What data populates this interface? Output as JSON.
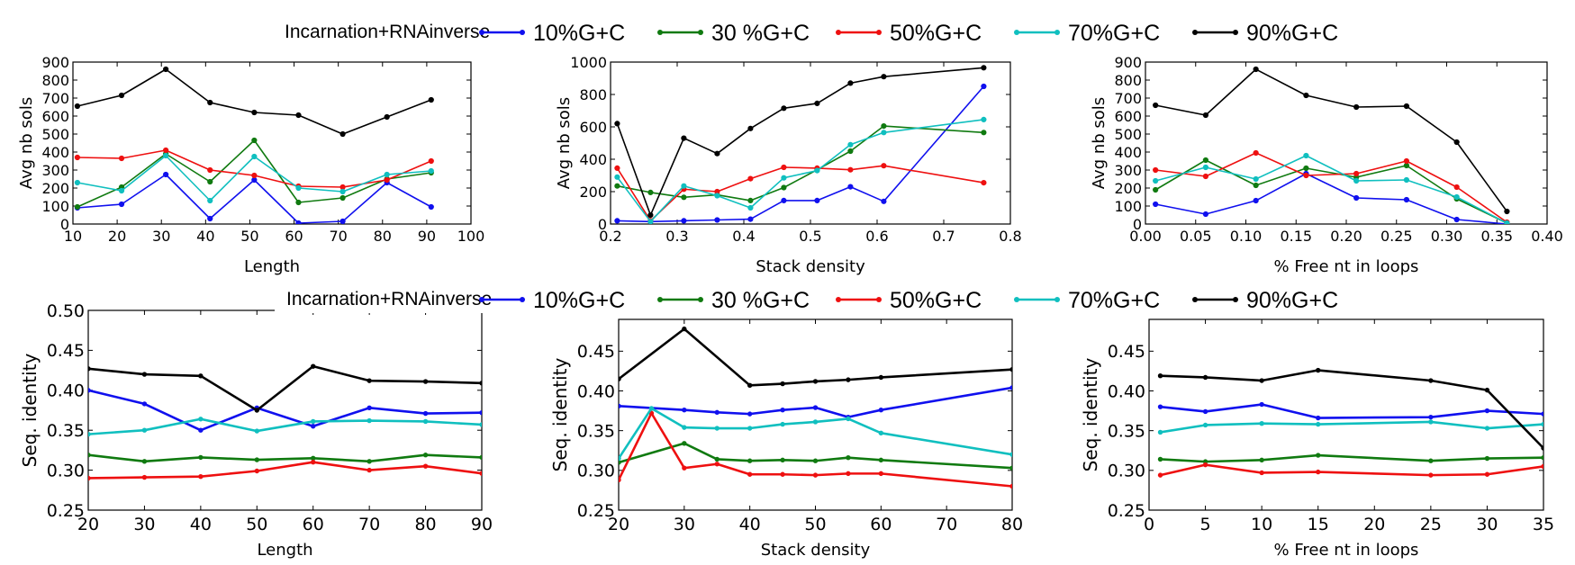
{
  "legend": {
    "title": "Incarnation+RNAinverse",
    "entries": [
      "10%G+C",
      "30 %G+C",
      "50%G+C",
      "70%G+C",
      "90%G+C"
    ]
  },
  "colors": {
    "10%G+C": "#1010ee",
    "30 %G+C": "#107a10",
    "50%G+C": "#ee1010",
    "70%G+C": "#10bfbf",
    "90%G+C": "#000000"
  },
  "chart_data": [
    {
      "type": "line",
      "xlabel": "Length",
      "ylabel": "Avg nb sols",
      "xlim": [
        10,
        100
      ],
      "ylim": [
        0,
        900
      ],
      "xticks": [
        10,
        20,
        30,
        40,
        50,
        60,
        70,
        80,
        90,
        100
      ],
      "yticks": [
        0,
        100,
        200,
        300,
        400,
        500,
        600,
        700,
        800,
        900
      ],
      "markers": true,
      "x": [
        11,
        21,
        31,
        41,
        51,
        61,
        71,
        81,
        91
      ],
      "series": [
        {
          "name": "10%G+C",
          "values": [
            90,
            110,
            275,
            30,
            245,
            5,
            15,
            230,
            95
          ]
        },
        {
          "name": "30 %G+C",
          "values": [
            95,
            205,
            390,
            235,
            465,
            120,
            145,
            250,
            285
          ]
        },
        {
          "name": "50%G+C",
          "values": [
            370,
            365,
            410,
            300,
            270,
            210,
            205,
            245,
            350
          ]
        },
        {
          "name": "70%G+C",
          "values": [
            230,
            185,
            380,
            130,
            375,
            200,
            180,
            275,
            295
          ]
        },
        {
          "name": "90%G+C",
          "values": [
            655,
            715,
            860,
            675,
            620,
            605,
            500,
            595,
            690
          ]
        }
      ]
    },
    {
      "type": "line",
      "xlabel": "Stack density",
      "ylabel": "Avg nb sols",
      "xlim": [
        0.2,
        0.8
      ],
      "ylim": [
        0,
        1000
      ],
      "xticks": [
        "0.2",
        "0.3",
        "0.4",
        "0.5",
        "0.6",
        "0.7",
        "0.8"
      ],
      "yticks": [
        0,
        200,
        400,
        600,
        800,
        1000
      ],
      "markers": true,
      "series": [
        {
          "name": "10%G+C",
          "x": [
            0.21,
            0.26,
            0.31,
            0.36,
            0.41,
            0.46,
            0.51,
            0.56,
            0.61,
            0.76
          ],
          "values": [
            20,
            15,
            20,
            25,
            30,
            145,
            145,
            230,
            140,
            850
          ]
        },
        {
          "name": "30 %G+C",
          "x": [
            0.21,
            0.26,
            0.31,
            0.36,
            0.41,
            0.46,
            0.51,
            0.56,
            0.61,
            0.76
          ],
          "values": [
            235,
            195,
            165,
            180,
            145,
            225,
            335,
            450,
            605,
            565
          ]
        },
        {
          "name": "50%G+C",
          "x": [
            0.21,
            0.26,
            0.31,
            0.36,
            0.41,
            0.46,
            0.51,
            0.56,
            0.61,
            0.76
          ],
          "values": [
            345,
            20,
            215,
            200,
            280,
            350,
            345,
            335,
            360,
            255
          ]
        },
        {
          "name": "70%G+C",
          "x": [
            0.21,
            0.26,
            0.31,
            0.36,
            0.41,
            0.46,
            0.51,
            0.56,
            0.61,
            0.76
          ],
          "values": [
            290,
            15,
            235,
            175,
            100,
            285,
            330,
            490,
            565,
            645
          ]
        },
        {
          "name": "90%G+C",
          "x": [
            0.21,
            0.26,
            0.31,
            0.36,
            0.41,
            0.46,
            0.51,
            0.56,
            0.61,
            0.76
          ],
          "values": [
            620,
            55,
            530,
            435,
            590,
            715,
            745,
            870,
            910,
            965
          ]
        }
      ]
    },
    {
      "type": "line",
      "xlabel": "% Free nt in loops",
      "ylabel": "Avg nb sols",
      "xlim": [
        0,
        0.4
      ],
      "ylim": [
        0,
        900
      ],
      "xticks": [
        "0.00",
        "0.05",
        "0.10",
        "0.15",
        "0.20",
        "0.25",
        "0.30",
        "0.35",
        "0.40"
      ],
      "yticks": [
        0,
        100,
        200,
        300,
        400,
        500,
        600,
        700,
        800,
        900
      ],
      "markers": true,
      "x": [
        0.01,
        0.06,
        0.11,
        0.16,
        0.21,
        0.26,
        0.31,
        0.36
      ],
      "series": [
        {
          "name": "10%G+C",
          "values": [
            110,
            55,
            130,
            280,
            145,
            135,
            25,
            0
          ]
        },
        {
          "name": "30 %G+C",
          "values": [
            190,
            355,
            215,
            310,
            260,
            325,
            140,
            5
          ]
        },
        {
          "name": "50%G+C",
          "values": [
            300,
            265,
            395,
            270,
            280,
            350,
            205,
            10
          ]
        },
        {
          "name": "70%G+C",
          "values": [
            240,
            315,
            250,
            380,
            240,
            245,
            150,
            5
          ]
        },
        {
          "name": "90%G+C",
          "values": [
            660,
            605,
            860,
            715,
            650,
            655,
            455,
            70
          ]
        }
      ]
    },
    {
      "type": "line",
      "xlabel": "Length",
      "ylabel": "Seq. identity",
      "xlim": [
        20,
        90
      ],
      "ylim": [
        0.25,
        0.5
      ],
      "xticks": [
        20,
        30,
        40,
        50,
        60,
        70,
        80,
        90
      ],
      "yticks": [
        "0.25",
        "0.30",
        "0.35",
        "0.40",
        "0.45",
        "0.50"
      ],
      "markers": true,
      "x": [
        20,
        30,
        40,
        50,
        60,
        70,
        80,
        90
      ],
      "series": [
        {
          "name": "10%G+C",
          "values": [
            0.4,
            0.383,
            0.35,
            0.378,
            0.355,
            0.378,
            0.371,
            0.372
          ]
        },
        {
          "name": "30 %G+C",
          "values": [
            0.319,
            0.311,
            0.316,
            0.313,
            0.315,
            0.311,
            0.319,
            0.316
          ]
        },
        {
          "name": "50%G+C",
          "values": [
            0.29,
            0.291,
            0.292,
            0.299,
            0.31,
            0.3,
            0.305,
            0.296
          ]
        },
        {
          "name": "70%G+C",
          "values": [
            0.345,
            0.35,
            0.364,
            0.349,
            0.361,
            0.362,
            0.361,
            0.357
          ]
        },
        {
          "name": "90%G+C",
          "values": [
            0.427,
            0.42,
            0.418,
            0.375,
            0.43,
            0.412,
            0.411,
            0.409
          ]
        }
      ]
    },
    {
      "type": "line",
      "xlabel": "Stack density",
      "ylabel": "Seq. identity",
      "xlim": [
        20,
        80
      ],
      "ylim": [
        0.25,
        0.49
      ],
      "xticks": [
        20,
        30,
        40,
        50,
        60,
        70,
        80
      ],
      "yticks": [
        "0.25",
        "0.30",
        "0.35",
        "0.40",
        "0.45"
      ],
      "markers": true,
      "series": [
        {
          "name": "10%G+C",
          "x": [
            20,
            30,
            35,
            40,
            45,
            50,
            55,
            60,
            80
          ],
          "values": [
            0.381,
            0.376,
            0.373,
            0.371,
            0.376,
            0.379,
            0.367,
            0.376,
            0.404
          ]
        },
        {
          "name": "30 %G+C",
          "x": [
            20,
            30,
            35,
            40,
            45,
            50,
            55,
            60,
            80
          ],
          "values": [
            0.31,
            0.334,
            0.314,
            0.312,
            0.313,
            0.312,
            0.316,
            0.313,
            0.303
          ]
        },
        {
          "name": "50%G+C",
          "x": [
            20,
            25,
            30,
            35,
            40,
            45,
            50,
            55,
            60,
            80
          ],
          "values": [
            0.288,
            0.372,
            0.303,
            0.308,
            0.295,
            0.295,
            0.294,
            0.296,
            0.296,
            0.28
          ]
        },
        {
          "name": "70%G+C",
          "x": [
            20,
            25,
            30,
            35,
            40,
            45,
            50,
            55,
            60,
            80
          ],
          "values": [
            0.315,
            0.378,
            0.354,
            0.353,
            0.353,
            0.358,
            0.361,
            0.365,
            0.347,
            0.32
          ]
        },
        {
          "name": "90%G+C",
          "x": [
            20,
            30,
            40,
            45,
            50,
            55,
            60,
            80
          ],
          "values": [
            0.415,
            0.478,
            0.407,
            0.409,
            0.412,
            0.414,
            0.417,
            0.427
          ]
        }
      ]
    },
    {
      "type": "line",
      "xlabel": "% Free nt in loops",
      "ylabel": "Seq. identity",
      "xlim": [
        0,
        35
      ],
      "ylim": [
        0.25,
        0.49
      ],
      "xticks": [
        0,
        5,
        10,
        15,
        20,
        25,
        30,
        35
      ],
      "yticks": [
        "0.25",
        "0.30",
        "0.35",
        "0.40",
        "0.45"
      ],
      "markers": true,
      "x": [
        1,
        5,
        10,
        15,
        25,
        30,
        35
      ],
      "series": [
        {
          "name": "10%G+C",
          "values": [
            0.38,
            0.374,
            0.383,
            0.366,
            0.367,
            0.375,
            0.371
          ]
        },
        {
          "name": "30 %G+C",
          "values": [
            0.314,
            0.311,
            0.313,
            0.319,
            0.312,
            0.315,
            0.316
          ]
        },
        {
          "name": "50%G+C",
          "values": [
            0.294,
            0.307,
            0.297,
            0.298,
            0.294,
            0.295,
            0.305
          ]
        },
        {
          "name": "70%G+C",
          "values": [
            0.348,
            0.357,
            0.359,
            0.358,
            0.361,
            0.353,
            0.358
          ]
        },
        {
          "name": "90%G+C",
          "values": [
            0.419,
            0.417,
            0.413,
            0.426,
            0.413,
            0.401,
            0.328
          ]
        }
      ]
    }
  ]
}
